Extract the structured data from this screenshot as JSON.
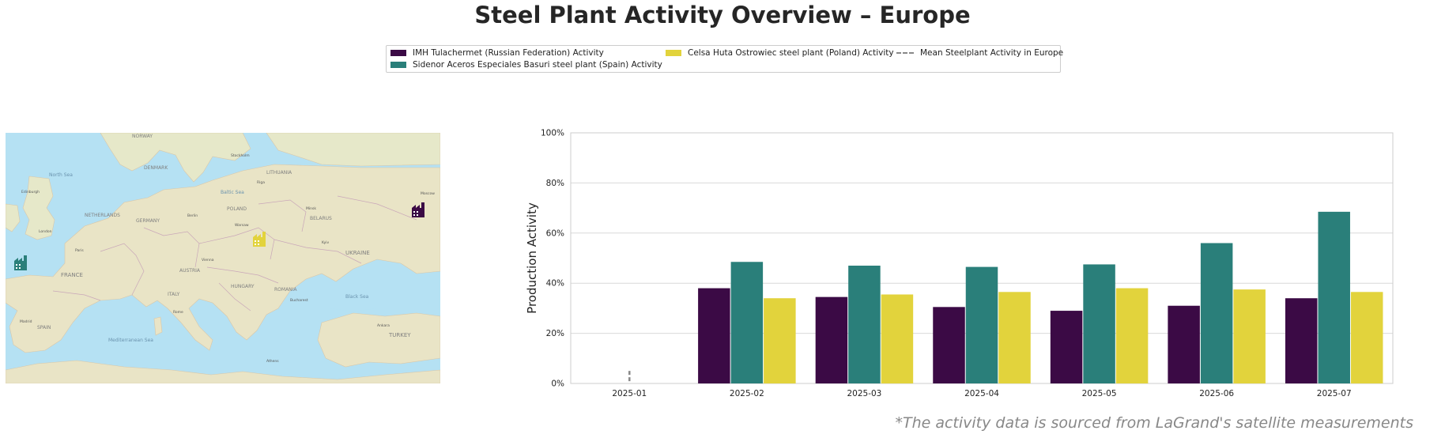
{
  "title": "Steel Plant Activity Overview – Europe",
  "footnote": "*The activity data is sourced from LaGrand's satellite measurements",
  "legend": {
    "items": [
      {
        "label": "IMH Tulachermet (Russian Federation) Activity",
        "color": "#3b0a45"
      },
      {
        "label": "Sidenor Aceros Especiales Basuri steel plant (Spain) Activity",
        "color": "#2a7f7a"
      },
      {
        "label": "Celsa Huta Ostrowiec steel plant (Poland) Activity",
        "color": "#e2d33c"
      },
      {
        "label": "Mean Steelplant Activity in Europe",
        "color": "#888888"
      }
    ]
  },
  "map": {
    "labels": {
      "norway": "NORWAY",
      "north_sea": "North Sea",
      "denmark": "DENMARK",
      "baltic": "Baltic Sea",
      "lithuania": "LITHUANIA",
      "belarus": "BELARUS",
      "netherlands": "NETHERLANDS",
      "poland": "POLAND",
      "germany": "GERMANY",
      "ukraine": "UKRAINE",
      "france": "FRANCE",
      "austria": "AUSTRIA",
      "hungary": "HUNGARY",
      "romania": "ROMANIA",
      "italy": "ITALY",
      "spain": "SPAIN",
      "med": "Mediterranean Sea",
      "black_sea": "Black Sea",
      "turkey": "TURKEY",
      "stockholm": "Stockholm",
      "warsaw": "Warsaw",
      "moscow": "Moscow",
      "london": "London",
      "paris": "Paris",
      "berlin": "Berlin",
      "vienna": "Vienna",
      "madrid": "Madrid",
      "rome": "Rome",
      "kyiv": "Kyiv",
      "minsk": "Minsk",
      "bucharest": "Bucharest",
      "athens": "Athens",
      "ankara": "Ankara",
      "edinburgh": "Edinburgh",
      "riga": "Riga"
    },
    "markers": [
      {
        "name": "IMH Tulachermet",
        "color": "#3b0a45"
      },
      {
        "name": "Sidenor Aceros Especiales Basuri",
        "color": "#2a7f7a"
      },
      {
        "name": "Celsa Huta Ostrowiec",
        "color": "#e2d33c"
      }
    ]
  },
  "chart_data": {
    "type": "bar",
    "title": "Steel Plant Activity Overview – Europe",
    "xlabel": "",
    "ylabel": "Production Activity",
    "ylim": [
      0,
      100
    ],
    "yticks": [
      "0%",
      "20%",
      "40%",
      "60%",
      "80%",
      "100%"
    ],
    "categories": [
      "2025-01",
      "2025-02",
      "2025-03",
      "2025-04",
      "2025-05",
      "2025-06",
      "2025-07"
    ],
    "series": [
      {
        "name": "IMH Tulachermet (Russian Federation) Activity",
        "color": "#3b0a45",
        "values": [
          null,
          38,
          34.5,
          30.5,
          29,
          31,
          34
        ]
      },
      {
        "name": "Sidenor Aceros Especiales Basuri steel plant (Spain) Activity",
        "color": "#2a7f7a",
        "values": [
          null,
          48.5,
          47,
          46.5,
          47.5,
          56,
          68.5
        ]
      },
      {
        "name": "Celsa Huta Ostrowiec steel plant (Poland) Activity",
        "color": "#e2d33c",
        "values": [
          null,
          34,
          35.5,
          36.5,
          38,
          37.5,
          36.5
        ]
      }
    ],
    "mean": {
      "name": "Mean Steelplant Activity in Europe",
      "color": "#888888",
      "values": [
        2.5,
        null,
        null,
        null,
        null,
        null,
        null
      ]
    },
    "grid": true,
    "legend_position": "top-center"
  }
}
